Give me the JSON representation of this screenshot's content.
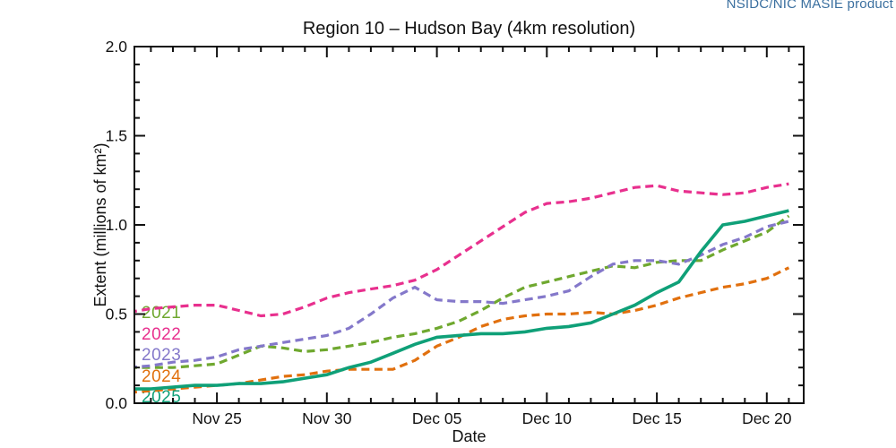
{
  "header": {
    "product_label": "NSIDC/NIC MASIE product",
    "product_label_color": "#3a6f9f"
  },
  "chart_data": {
    "type": "line",
    "title": "Region 10 – Hudson Bay (4km resolution)",
    "xlabel": "Date",
    "ylabel": "Extent (millions of km²)",
    "ylim": [
      0.0,
      2.0
    ],
    "grid": false,
    "legend_position": "inside-left",
    "axis_color": "#111111",
    "y_major_ticks": [
      0.0,
      0.5,
      1.0,
      1.5,
      2.0
    ],
    "y_tick_labels": [
      "0.0",
      "0.5",
      "1.0",
      "1.5",
      "2.0"
    ],
    "y_minor_step": 0.1,
    "x_dates": [
      "Nov 21",
      "Nov 22",
      "Nov 23",
      "Nov 24",
      "Nov 25",
      "Nov 26",
      "Nov 27",
      "Nov 28",
      "Nov 29",
      "Nov 30",
      "Dec 01",
      "Dec 02",
      "Dec 03",
      "Dec 04",
      "Dec 05",
      "Dec 06",
      "Dec 07",
      "Dec 08",
      "Dec 09",
      "Dec 10",
      "Dec 11",
      "Dec 12",
      "Dec 13",
      "Dec 14",
      "Dec 15",
      "Dec 16",
      "Dec 17",
      "Dec 18",
      "Dec 19",
      "Dec 20",
      "Dec 21"
    ],
    "x_major_tick_days": [
      4,
      9,
      14,
      19,
      24,
      29
    ],
    "x_major_tick_labels": [
      "Nov 25",
      "Nov 30",
      "Dec 05",
      "Dec 10",
      "Dec 15",
      "Dec 20"
    ],
    "series": [
      {
        "name": "2021",
        "color": "#6fa82f",
        "style": "dashed",
        "values": [
          0.2,
          0.2,
          0.2,
          0.21,
          0.22,
          0.27,
          0.32,
          0.31,
          0.29,
          0.3,
          0.32,
          0.34,
          0.37,
          0.39,
          0.42,
          0.46,
          0.52,
          0.59,
          0.65,
          0.68,
          0.71,
          0.74,
          0.77,
          0.76,
          0.79,
          0.8,
          0.8,
          0.86,
          0.91,
          0.96,
          1.05
        ]
      },
      {
        "name": "2022",
        "color": "#e8308e",
        "style": "dashed",
        "values": [
          0.51,
          0.53,
          0.54,
          0.55,
          0.55,
          0.52,
          0.49,
          0.5,
          0.54,
          0.59,
          0.62,
          0.64,
          0.66,
          0.69,
          0.75,
          0.83,
          0.91,
          0.99,
          1.07,
          1.12,
          1.13,
          1.15,
          1.18,
          1.21,
          1.22,
          1.19,
          1.18,
          1.17,
          1.18,
          1.21,
          1.23
        ]
      },
      {
        "name": "2023",
        "color": "#8478ca",
        "style": "dashed",
        "values": [
          0.2,
          0.21,
          0.23,
          0.24,
          0.26,
          0.3,
          0.32,
          0.34,
          0.36,
          0.38,
          0.42,
          0.5,
          0.59,
          0.65,
          0.58,
          0.57,
          0.57,
          0.56,
          0.58,
          0.6,
          0.63,
          0.71,
          0.78,
          0.8,
          0.8,
          0.78,
          0.83,
          0.89,
          0.93,
          0.99,
          1.02
        ]
      },
      {
        "name": "2024",
        "color": "#e1700e",
        "style": "dashed",
        "values": [
          0.06,
          0.07,
          0.08,
          0.09,
          0.1,
          0.11,
          0.13,
          0.15,
          0.16,
          0.18,
          0.19,
          0.19,
          0.19,
          0.24,
          0.32,
          0.37,
          0.43,
          0.47,
          0.49,
          0.5,
          0.5,
          0.51,
          0.5,
          0.52,
          0.55,
          0.59,
          0.62,
          0.65,
          0.67,
          0.7,
          0.76
        ]
      },
      {
        "name": "2025",
        "color": "#0fa078",
        "style": "solid",
        "values": [
          0.08,
          0.08,
          0.09,
          0.1,
          0.1,
          0.11,
          0.11,
          0.12,
          0.14,
          0.16,
          0.2,
          0.23,
          0.28,
          0.33,
          0.37,
          0.38,
          0.39,
          0.39,
          0.4,
          0.42,
          0.43,
          0.45,
          0.5,
          0.55,
          0.62,
          0.68,
          0.85,
          1.0,
          1.02,
          1.05,
          1.08
        ]
      }
    ]
  }
}
